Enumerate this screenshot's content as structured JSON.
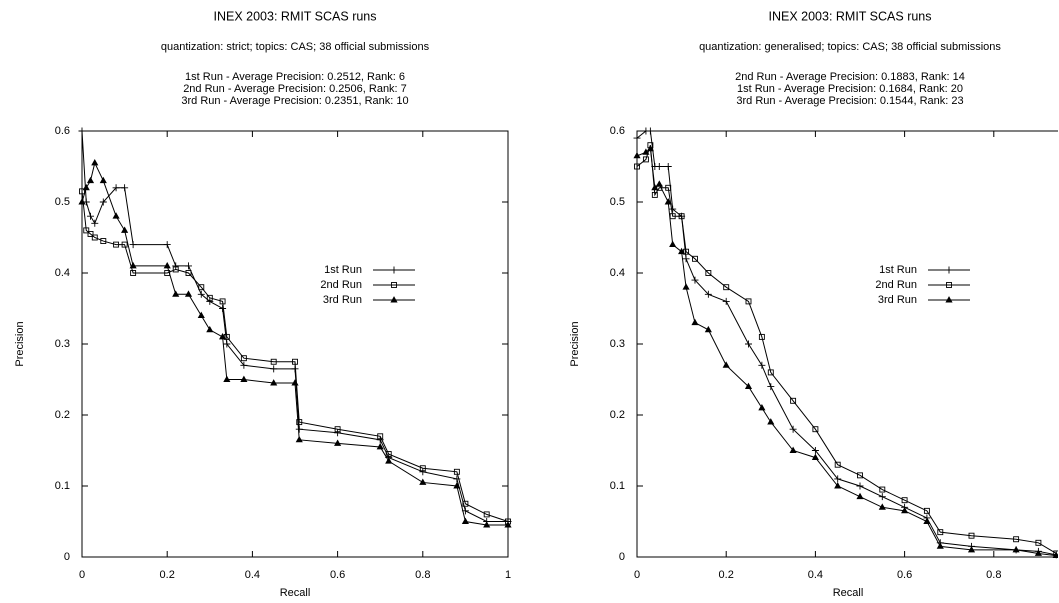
{
  "chart_data": [
    {
      "type": "line",
      "title": "INEX 2003: RMIT SCAS runs",
      "subtitle": "quantization: strict; topics: CAS; 38 official submissions",
      "annotations": [
        "1st Run - Average Precision: 0.2512, Rank: 6",
        "2nd Run - Average Precision: 0.2506, Rank: 7",
        "3rd Run - Average Precision: 0.2351, Rank: 10"
      ],
      "x_label": "Recall",
      "y_label": "Precision",
      "x": [
        0,
        0.01,
        0.02,
        0.03,
        0.05,
        0.08,
        0.1,
        0.12,
        0.2,
        0.22,
        0.25,
        0.28,
        0.3,
        0.33,
        0.34,
        0.38,
        0.45,
        0.5,
        0.51,
        0.6,
        0.7,
        0.72,
        0.8,
        0.88,
        0.9,
        0.95,
        1
      ],
      "series": [
        {
          "name": "1st Run",
          "color": "#000000",
          "marker": "plus",
          "values": [
            0.6,
            0.5,
            0.48,
            0.47,
            0.5,
            0.52,
            0.52,
            0.44,
            0.44,
            0.41,
            0.41,
            0.37,
            0.36,
            0.35,
            0.3,
            0.27,
            0.265,
            0.265,
            0.18,
            0.175,
            0.165,
            0.14,
            0.12,
            0.11,
            0.065,
            0.05,
            0.05
          ]
        },
        {
          "name": "2nd Run",
          "color": "#000000",
          "marker": "square",
          "values": [
            0.515,
            0.46,
            0.455,
            0.45,
            0.445,
            0.44,
            0.44,
            0.4,
            0.4,
            0.405,
            0.4,
            0.38,
            0.365,
            0.36,
            0.31,
            0.28,
            0.275,
            0.275,
            0.19,
            0.18,
            0.17,
            0.145,
            0.125,
            0.12,
            0.075,
            0.06,
            0.05
          ]
        },
        {
          "name": "3rd Run",
          "color": "#000000",
          "marker": "triangle",
          "values": [
            0.5,
            0.52,
            0.53,
            0.555,
            0.53,
            0.48,
            0.46,
            0.41,
            0.41,
            0.37,
            0.37,
            0.34,
            0.32,
            0.31,
            0.25,
            0.25,
            0.245,
            0.245,
            0.165,
            0.16,
            0.155,
            0.135,
            0.105,
            0.1,
            0.05,
            0.045,
            0.045
          ]
        }
      ],
      "xlim": [
        0,
        1
      ],
      "xticks": [
        0,
        0.2,
        0.4,
        0.6,
        0.8,
        1
      ],
      "ylim": [
        0,
        0.6
      ],
      "yticks": [
        0,
        0.1,
        0.2,
        0.3,
        0.4,
        0.5,
        0.6
      ],
      "grid": false,
      "legend": "center-right"
    },
    {
      "type": "line",
      "title": "INEX 2003: RMIT SCAS runs",
      "subtitle": "quantization: generalised; topics: CAS; 38 official submissions",
      "annotations": [
        "2nd Run - Average Precision: 0.1883, Rank: 14",
        "1st Run - Average Precision: 0.1684, Rank: 20",
        "3rd Run - Average Precision: 0.1544, Rank: 23"
      ],
      "x_label": "Recall",
      "y_label": "Precision",
      "x": [
        0,
        0.02,
        0.03,
        0.04,
        0.05,
        0.07,
        0.08,
        0.1,
        0.11,
        0.13,
        0.16,
        0.2,
        0.25,
        0.28,
        0.3,
        0.35,
        0.4,
        0.45,
        0.5,
        0.55,
        0.6,
        0.65,
        0.68,
        0.75,
        0.85,
        0.9,
        0.94
      ],
      "series": [
        {
          "name": "1st Run",
          "color": "#000000",
          "marker": "plus",
          "values": [
            0.59,
            0.6,
            0.6,
            0.55,
            0.55,
            0.55,
            0.49,
            0.48,
            0.42,
            0.39,
            0.37,
            0.36,
            0.3,
            0.27,
            0.24,
            0.18,
            0.15,
            0.11,
            0.1,
            0.085,
            0.07,
            0.055,
            0.02,
            0.015,
            0.01,
            0.008,
            0.003
          ]
        },
        {
          "name": "2nd Run",
          "color": "#000000",
          "marker": "square",
          "values": [
            0.55,
            0.56,
            0.58,
            0.51,
            0.52,
            0.52,
            0.48,
            0.48,
            0.43,
            0.42,
            0.4,
            0.38,
            0.36,
            0.31,
            0.26,
            0.22,
            0.18,
            0.13,
            0.115,
            0.095,
            0.08,
            0.065,
            0.035,
            0.03,
            0.025,
            0.02,
            0.005
          ]
        },
        {
          "name": "3rd Run",
          "color": "#000000",
          "marker": "triangle",
          "values": [
            0.565,
            0.57,
            0.575,
            0.52,
            0.525,
            0.5,
            0.44,
            0.43,
            0.38,
            0.33,
            0.32,
            0.27,
            0.24,
            0.21,
            0.19,
            0.15,
            0.14,
            0.1,
            0.085,
            0.07,
            0.065,
            0.05,
            0.015,
            0.01,
            0.01,
            0.005,
            0.002
          ]
        }
      ],
      "xlim": [
        0,
        1
      ],
      "xticks": [
        0,
        0.2,
        0.4,
        0.6,
        0.8
      ],
      "ylim": [
        0,
        0.6
      ],
      "yticks": [
        0,
        0.1,
        0.2,
        0.3,
        0.4,
        0.5,
        0.6
      ],
      "grid": false,
      "legend": "center-right"
    }
  ]
}
